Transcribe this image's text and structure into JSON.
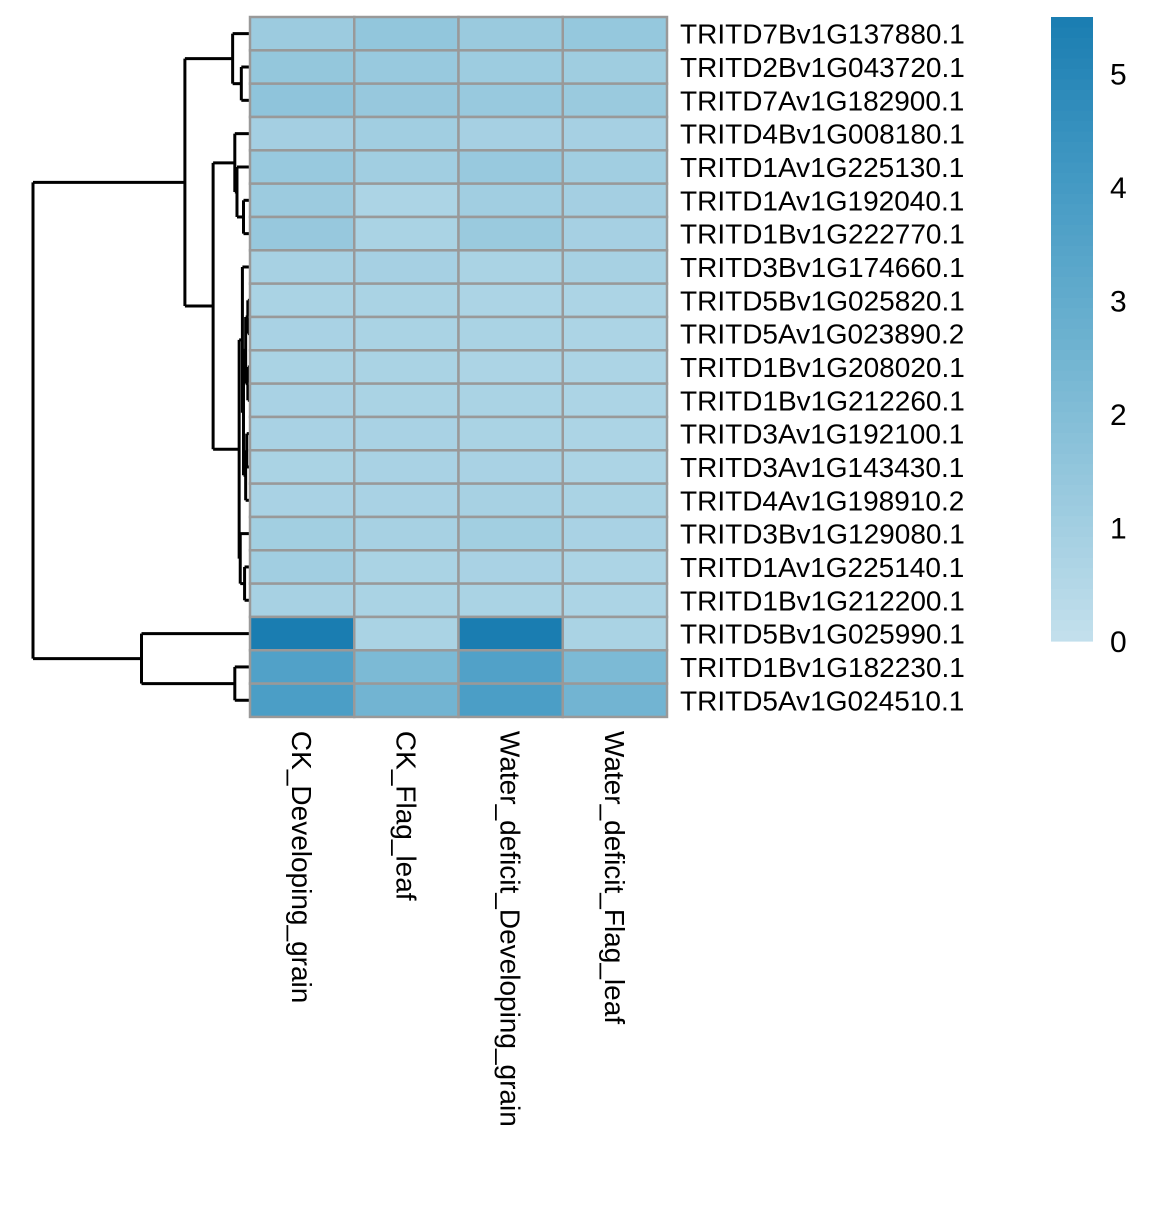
{
  "chart_data": {
    "type": "heatmap",
    "columns": [
      "CK_Developing_grain",
      "CK_Flag_leaf",
      "Water_deficit_Developing_grain",
      "Water_deficit_Flag_leaf"
    ],
    "rows": [
      "TRITD7Bv1G137880.1",
      "TRITD2Bv1G043720.1",
      "TRITD7Av1G182900.1",
      "TRITD4Bv1G008180.1",
      "TRITD1Av1G225130.1",
      "TRITD1Av1G192040.1",
      "TRITD1Bv1G222770.1",
      "TRITD3Bv1G174660.1",
      "TRITD5Bv1G025820.1",
      "TRITD5Av1G023890.2",
      "TRITD1Bv1G208020.1",
      "TRITD1Bv1G212260.1",
      "TRITD3Av1G192100.1",
      "TRITD3Av1G143430.1",
      "TRITD4Av1G198910.2",
      "TRITD3Bv1G129080.1",
      "TRITD1Av1G225140.1",
      "TRITD1Bv1G212200.1",
      "TRITD5Bv1G025990.1",
      "TRITD1Bv1G182230.1",
      "TRITD5Av1G024510.1"
    ],
    "values": [
      [
        1.2,
        1.5,
        1.25,
        1.4
      ],
      [
        1.45,
        1.3,
        1.15,
        1.1
      ],
      [
        1.6,
        1.35,
        1.3,
        1.25
      ],
      [
        0.95,
        1.05,
        0.9,
        0.9
      ],
      [
        1.3,
        1.05,
        1.3,
        1.05
      ],
      [
        1.2,
        0.7,
        1.05,
        0.95
      ],
      [
        1.35,
        0.75,
        1.25,
        0.9
      ],
      [
        0.85,
        0.9,
        0.75,
        0.85
      ],
      [
        0.75,
        0.75,
        0.7,
        0.7
      ],
      [
        0.8,
        0.75,
        0.75,
        0.7
      ],
      [
        0.75,
        0.75,
        0.7,
        0.7
      ],
      [
        0.8,
        0.75,
        0.75,
        0.7
      ],
      [
        0.8,
        0.8,
        0.75,
        0.7
      ],
      [
        0.75,
        0.8,
        0.8,
        0.7
      ],
      [
        0.8,
        0.8,
        0.85,
        0.75
      ],
      [
        1.0,
        0.85,
        1.0,
        0.8
      ],
      [
        1.05,
        0.75,
        0.8,
        0.7
      ],
      [
        0.85,
        0.75,
        0.75,
        0.7
      ],
      [
        5.5,
        0.75,
        5.5,
        0.75
      ],
      [
        3.6,
        2.2,
        3.6,
        2.2
      ],
      [
        3.8,
        2.5,
        3.8,
        2.5
      ]
    ],
    "legend": {
      "ticks": [
        0,
        1,
        2,
        3,
        4,
        5
      ],
      "min": 0,
      "max": 5.5,
      "colors": [
        "#c3e0ed",
        "#96c8dd",
        "#6ab0cf",
        "#4198c3",
        "#1a7db1"
      ]
    },
    "grid_color": "#999999",
    "row_dendrogram": true,
    "title": "",
    "xlabel": "",
    "ylabel": ""
  }
}
